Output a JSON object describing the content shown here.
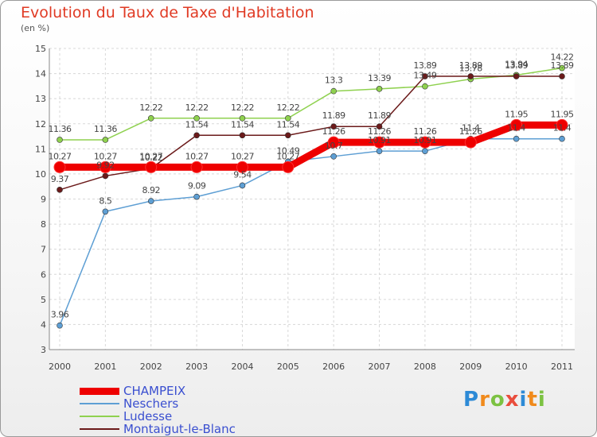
{
  "chart_data": {
    "type": "line",
    "title": "Evolution du Taux de Taxe d'Habitation",
    "subtitle": "(en %)",
    "x": [
      "2000",
      "2001",
      "2002",
      "2003",
      "2004",
      "2005",
      "2006",
      "2007",
      "2008",
      "2009",
      "2010",
      "2011"
    ],
    "ylim": [
      3,
      15
    ],
    "yticks": [
      "3",
      "4",
      "5",
      "6",
      "7",
      "8",
      "9",
      "10",
      "11",
      "12",
      "13",
      "14",
      "15"
    ],
    "grid": true,
    "legend_position": "bottom-left",
    "series": [
      {
        "name": "CHAMPEIX",
        "color": "#ee0000",
        "values": [
          10.27,
          10.27,
          10.27,
          10.27,
          10.27,
          10.27,
          11.26,
          11.26,
          11.26,
          11.26,
          11.95,
          11.95
        ]
      },
      {
        "name": "Neschers",
        "color": "#5e9fd4",
        "values": [
          3.96,
          8.5,
          8.92,
          9.09,
          9.54,
          10.49,
          10.7,
          10.91,
          10.91,
          11.4,
          11.4,
          11.4
        ]
      },
      {
        "name": "Ludesse",
        "color": "#8fd14f",
        "values": [
          11.36,
          11.36,
          12.22,
          12.22,
          12.22,
          12.22,
          13.3,
          13.39,
          13.49,
          13.78,
          13.94,
          14.22
        ]
      },
      {
        "name": "Montaigut-le-Blanc",
        "color": "#6b1a1a",
        "values": [
          9.37,
          9.92,
          10.22,
          11.54,
          11.54,
          11.54,
          11.89,
          11.89,
          13.89,
          13.89,
          13.89,
          13.89
        ]
      }
    ]
  },
  "brand": {
    "letters": [
      "P",
      "r",
      "o",
      "x",
      "i",
      "t",
      "i"
    ],
    "colors": [
      "#2d8ad6",
      "#f08a1c",
      "#7cc242",
      "#e94d3c",
      "#2d8ad6",
      "#f08a1c",
      "#7cc242"
    ]
  }
}
